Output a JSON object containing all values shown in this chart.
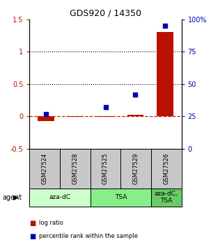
{
  "title": "GDS920 / 14350",
  "samples": [
    "GSM27524",
    "GSM27528",
    "GSM27525",
    "GSM27529",
    "GSM27526"
  ],
  "log_ratio": [
    -0.07,
    -0.01,
    -0.01,
    0.02,
    1.3
  ],
  "percentile_rank": [
    0.27,
    null,
    0.32,
    0.42,
    0.95
  ],
  "ylim_left": [
    -0.5,
    1.5
  ],
  "ylim_right": [
    0,
    100
  ],
  "yticks_left": [
    -0.5,
    0.0,
    0.5,
    1.0,
    1.5
  ],
  "ytick_labels_left": [
    "-0.5",
    "0",
    "0.5",
    "1",
    "1.5"
  ],
  "yticks_right": [
    0,
    25,
    50,
    75,
    100
  ],
  "ytick_labels_right": [
    "0",
    "25",
    "50",
    "75",
    "100%"
  ],
  "hlines": [
    0.5,
    1.0
  ],
  "agent_groups": [
    {
      "label": "aza-dC",
      "start": 0,
      "end": 2,
      "color": "#ccffcc"
    },
    {
      "label": "TSA",
      "start": 2,
      "end": 4,
      "color": "#88ee88"
    },
    {
      "label": "aza-dC,\nTSA",
      "start": 4,
      "end": 5,
      "color": "#66cc66"
    }
  ],
  "bar_color": "#bb1100",
  "dot_color": "#0000bb",
  "zero_line_color": "#cc2200",
  "header_bg": "#c8c8c8",
  "legend_items": [
    {
      "color": "#bb1100",
      "label": "log ratio"
    },
    {
      "color": "#0000bb",
      "label": "percentile rank within the sample"
    }
  ]
}
